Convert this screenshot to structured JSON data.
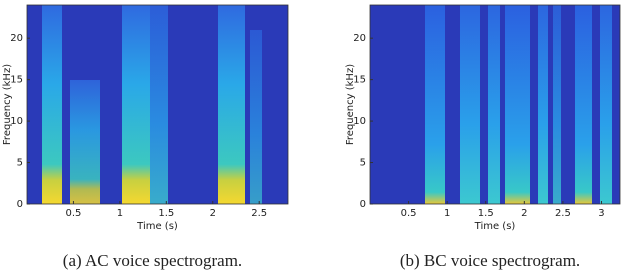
{
  "chart_data": [
    {
      "type": "spectrogram",
      "caption": "(a) AC voice spectrogram.",
      "xlabel": "Time (s)",
      "ylabel": "Frequency (kHz)",
      "xlim": [
        0,
        2.81
      ],
      "xticks": [
        0.5,
        1,
        1.5,
        2,
        2.5
      ],
      "ylim": [
        0,
        24
      ],
      "yticks": [
        0,
        5,
        10,
        15,
        20
      ]
    },
    {
      "type": "spectrogram",
      "caption": "(b) BC voice spectrogram.",
      "xlabel": "Time (s)",
      "ylabel": "Frequency (kHz)",
      "xlim": [
        0,
        3.24
      ],
      "xticks": [
        0.5,
        1,
        1.5,
        2,
        2.5,
        3
      ],
      "ylim": [
        0,
        24
      ],
      "yticks": [
        0,
        5,
        10,
        15,
        20
      ]
    }
  ]
}
